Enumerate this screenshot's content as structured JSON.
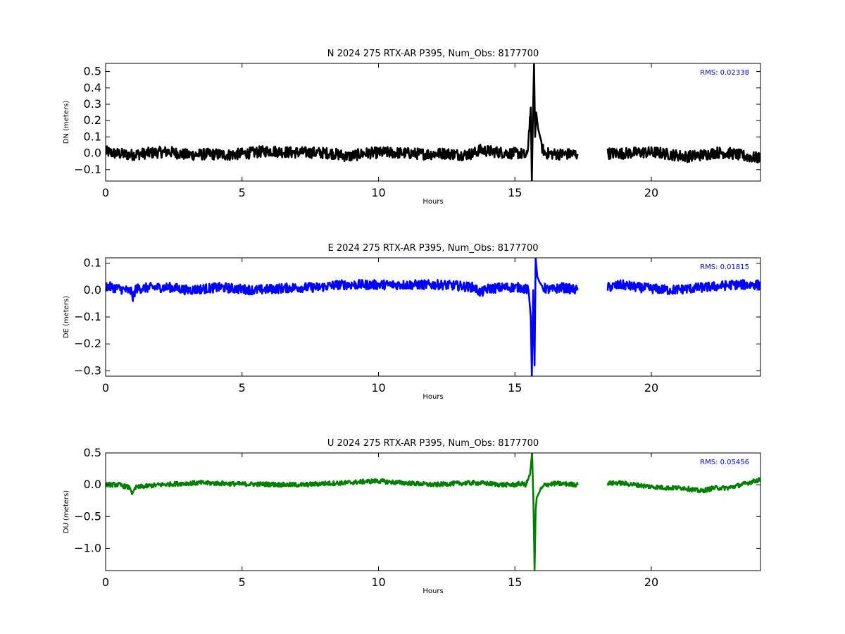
{
  "chart_data": [
    {
      "type": "line",
      "title": "N 2024 275 RTX-AR  P395, Num_Obs: 8177700",
      "xlabel": "Hours",
      "ylabel": "DN (meters)",
      "xlim": [
        0,
        24
      ],
      "ylim": [
        -0.17,
        0.55
      ],
      "xticks": [
        0,
        5,
        10,
        15,
        20
      ],
      "yticks": [
        -0.1,
        0.0,
        0.1,
        0.2,
        0.3,
        0.4,
        0.5
      ],
      "ytick_labels": [
        "−0.1",
        "0.0",
        "0.1",
        "0.2",
        "0.3",
        "0.4",
        "0.5"
      ],
      "grid": false,
      "annotation": "RMS:  0.02338",
      "annotation_color": "#0000ff",
      "series": [
        {
          "color": "#000000",
          "x": [
            0,
            0.3,
            0.9,
            1.5,
            2.3,
            3.0,
            3.8,
            4.5,
            5.2,
            6.0,
            6.8,
            7.5,
            8.3,
            8.9,
            9.5,
            10.3,
            11.0,
            11.8,
            12.4,
            13.1,
            13.5,
            13.7,
            14.2,
            14.8,
            15.2,
            15.45,
            15.58,
            15.62,
            15.66,
            15.7,
            15.74,
            15.78,
            15.85,
            15.95,
            16.1,
            16.5,
            17.0,
            17.3,
            null,
            18.4,
            19.0,
            19.6,
            20.2,
            20.8,
            21.3,
            21.9,
            22.4,
            22.9,
            23.5,
            24.0
          ],
          "y": [
            0.01,
            0.0,
            -0.01,
            0.0,
            0.01,
            -0.01,
            -0.005,
            -0.01,
            0.0,
            0.015,
            0.005,
            0.005,
            0.0,
            -0.02,
            0.0,
            0.005,
            0.0,
            -0.005,
            0.0,
            -0.01,
            0.0,
            0.02,
            0.01,
            0.0,
            0.0,
            -0.02,
            0.28,
            -0.17,
            0.22,
            0.55,
            0.1,
            0.25,
            0.15,
            0.05,
            0.0,
            -0.005,
            -0.005,
            -0.005,
            null,
            0.0,
            0.0,
            0.005,
            0.005,
            -0.01,
            -0.02,
            -0.01,
            0.005,
            0.0,
            -0.02,
            -0.03
          ],
          "noise": 0.035
        }
      ]
    },
    {
      "type": "line",
      "title": "E 2024 275 RTX-AR  P395, Num_Obs: 8177700",
      "xlabel": "Hours",
      "ylabel": "DE (meters)",
      "xlim": [
        0,
        24
      ],
      "ylim": [
        -0.32,
        0.12
      ],
      "xticks": [
        0,
        5,
        10,
        15,
        20
      ],
      "yticks": [
        -0.3,
        -0.2,
        -0.1,
        0.0,
        0.1
      ],
      "ytick_labels": [
        "−0.3",
        "−0.2",
        "−0.1",
        "0.0",
        "0.1"
      ],
      "grid": false,
      "annotation": "RMS:  0.01815",
      "annotation_color": "#0000ff",
      "series": [
        {
          "color": "#0000ff",
          "x": [
            0,
            0.5,
            0.95,
            1.0,
            1.1,
            1.7,
            2.4,
            3.0,
            3.6,
            4.2,
            4.8,
            5.5,
            6.2,
            7.0,
            7.8,
            8.5,
            9.2,
            10.0,
            10.8,
            11.5,
            12.3,
            13.0,
            13.5,
            13.75,
            14.0,
            14.6,
            15.2,
            15.5,
            15.58,
            15.62,
            15.67,
            15.72,
            15.76,
            15.82,
            15.9,
            16.0,
            16.3,
            16.7,
            17.0,
            17.3,
            null,
            18.4,
            18.9,
            19.5,
            20.1,
            20.7,
            21.3,
            21.9,
            22.5,
            23.0,
            23.5,
            24.0
          ],
          "y": [
            0.015,
            0.005,
            -0.005,
            -0.03,
            0.005,
            0.01,
            0.01,
            0.0,
            0.005,
            0.01,
            0.005,
            0.0,
            0.005,
            0.01,
            0.01,
            0.02,
            0.02,
            0.02,
            0.02,
            0.02,
            0.02,
            0.015,
            0.01,
            -0.01,
            0.005,
            0.01,
            0.01,
            0.0,
            -0.1,
            -0.32,
            0.0,
            -0.28,
            0.12,
            0.05,
            0.03,
            0.01,
            0.0,
            0.01,
            0.005,
            0.0,
            null,
            0.01,
            0.02,
            0.01,
            0.005,
            0.0,
            0.005,
            0.01,
            0.015,
            0.02,
            0.02,
            0.02
          ],
          "noise": 0.018
        }
      ]
    },
    {
      "type": "line",
      "title": "U 2024 275 RTX-AR  P395, Num_Obs: 8177700",
      "xlabel": "Hours",
      "ylabel": "DU (meters)",
      "xlim": [
        0,
        24
      ],
      "ylim": [
        -1.35,
        0.5
      ],
      "xticks": [
        0,
        5,
        10,
        15,
        20
      ],
      "yticks": [
        -1.0,
        -0.5,
        0.0,
        0.5
      ],
      "ytick_labels": [
        "−1.0",
        "−0.5",
        "0.0",
        "0.5"
      ],
      "grid": false,
      "annotation": "RMS:  0.05456",
      "annotation_color": "#0000ff",
      "series": [
        {
          "color": "#008000",
          "x": [
            0,
            0.5,
            0.9,
            0.97,
            1.05,
            1.3,
            2.0,
            2.8,
            3.5,
            4.3,
            5.0,
            5.8,
            6.5,
            7.3,
            8.0,
            8.8,
            9.5,
            10.0,
            10.5,
            11.3,
            12.0,
            12.8,
            13.5,
            14.0,
            14.5,
            15.0,
            15.2,
            15.4,
            15.55,
            15.63,
            15.68,
            15.72,
            15.76,
            15.8,
            15.9,
            16.1,
            16.5,
            17.0,
            17.3,
            null,
            18.4,
            18.8,
            19.4,
            20.0,
            20.6,
            21.2,
            21.8,
            22.3,
            22.8,
            23.3,
            23.7,
            24.0
          ],
          "y": [
            0.0,
            0.0,
            -0.05,
            -0.15,
            -0.05,
            -0.03,
            0.0,
            0.02,
            0.03,
            0.02,
            0.01,
            0.01,
            0.0,
            0.0,
            0.02,
            0.03,
            0.05,
            0.06,
            0.04,
            0.02,
            0.0,
            0.02,
            0.03,
            0.02,
            0.0,
            0.0,
            0.02,
            0.0,
            0.15,
            0.5,
            -0.3,
            -1.35,
            -0.4,
            -0.2,
            -0.1,
            0.0,
            0.02,
            0.01,
            0.0,
            null,
            0.02,
            0.03,
            0.0,
            -0.03,
            -0.05,
            -0.05,
            -0.1,
            -0.05,
            -0.05,
            0.0,
            0.05,
            0.08
          ],
          "noise": 0.035
        }
      ]
    }
  ]
}
